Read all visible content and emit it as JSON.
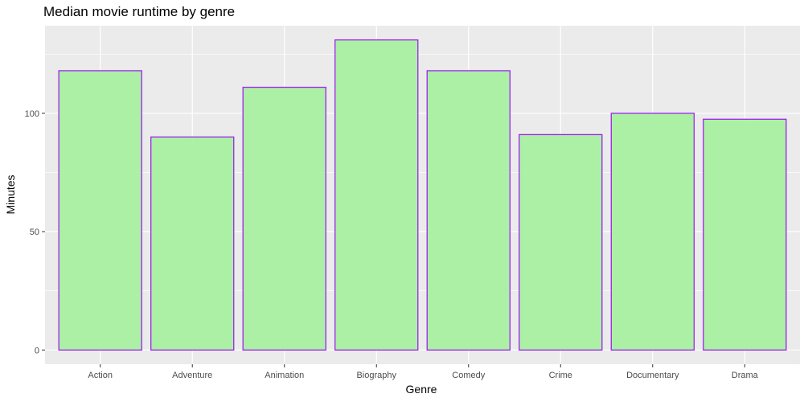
{
  "chart_data": {
    "type": "bar",
    "title": "Median movie runtime by genre",
    "xlabel": "Genre",
    "ylabel": "Minutes",
    "categories": [
      "Action",
      "Adventure",
      "Animation",
      "Biography",
      "Comedy",
      "Crime",
      "Documentary",
      "Drama"
    ],
    "values": [
      118,
      90,
      111,
      131,
      118,
      91,
      100,
      97.5
    ],
    "yticks": [
      0,
      50,
      100
    ],
    "ytick_labels": [
      "0",
      "50",
      "100"
    ],
    "ylim": [
      -6,
      137
    ],
    "grid": true,
    "legend": "none",
    "colors": {
      "bar_fill": "#a6f09f",
      "bar_outline": "#a020f0",
      "panel_background": "#ebebeb",
      "grid_major": "#ffffff"
    }
  }
}
